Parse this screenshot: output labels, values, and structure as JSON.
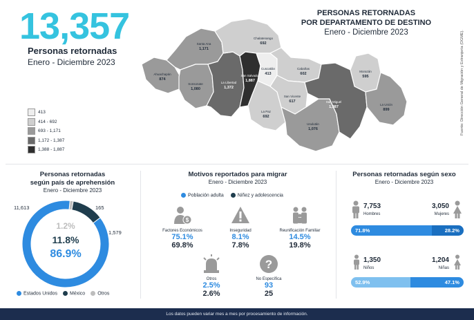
{
  "header": {
    "total": "13,357",
    "subtitle": "Personas retornadas",
    "period": "Enero - Diciembre 2023"
  },
  "map": {
    "title_line1": "PERSONAS RETORNADAS",
    "title_line2": "POR DEPARTAMENTO DE DESTINO",
    "period": "Enero - Diciembre 2023",
    "source": "Fuente: Dirección General de Migración y Extranjería (DGME).",
    "legend": [
      {
        "label": "413",
        "color": "#eeeeee"
      },
      {
        "label": "414 - 692",
        "color": "#cfcfcf"
      },
      {
        "label": "693 - 1,171",
        "color": "#9a9a9a"
      },
      {
        "label": "1,172 - 1,387",
        "color": "#6a6a6a"
      },
      {
        "label": "1,388 - 1,887",
        "color": "#2f2f2f"
      }
    ],
    "departments": [
      {
        "name": "Ahuachapán",
        "value": "874",
        "color": "#9a9a9a"
      },
      {
        "name": "Santa Ana",
        "value": "1,171",
        "color": "#9a9a9a"
      },
      {
        "name": "Sonsonate",
        "value": "1,080",
        "color": "#9a9a9a"
      },
      {
        "name": "La Libertad",
        "value": "1,372",
        "color": "#6a6a6a"
      },
      {
        "name": "Chalatenango",
        "value": "692",
        "color": "#cfcfcf"
      },
      {
        "name": "San Salvador",
        "value": "1,887",
        "color": "#2f2f2f"
      },
      {
        "name": "Cuscatlán",
        "value": "413",
        "color": "#eeeeee"
      },
      {
        "name": "Cabañas",
        "value": "602",
        "color": "#cfcfcf"
      },
      {
        "name": "La Paz",
        "value": "692",
        "color": "#cfcfcf"
      },
      {
        "name": "San Vicente",
        "value": "617",
        "color": "#cfcfcf"
      },
      {
        "name": "Usulután",
        "value": "1,076",
        "color": "#9a9a9a"
      },
      {
        "name": "Morazán",
        "value": "595",
        "color": "#cfcfcf"
      },
      {
        "name": "San Miguel",
        "value": "1,387",
        "color": "#6a6a6a"
      },
      {
        "name": "La Unión",
        "value": "899",
        "color": "#9a9a9a"
      }
    ]
  },
  "pais": {
    "title_line1": "Personas retornadas",
    "title_line2": "según país de aprehensión",
    "period": "Enero - Diciembre 2023",
    "ext_labels": {
      "estados_unidos": "11,613",
      "otros": "165",
      "mexico": "1,579"
    },
    "pct_otros": "1.2%",
    "pct_mexico": "11.8%",
    "pct_eeuu": "86.9%",
    "legend": [
      {
        "label": "Estados Unidos",
        "color": "#2e8be0"
      },
      {
        "label": "México",
        "color": "#1f3d4d"
      },
      {
        "label": "Otros",
        "color": "#bdbdbd"
      }
    ]
  },
  "motivos": {
    "title": "Motivos reportados para migrar",
    "period": "Enero - Diciembre 2023",
    "legend": [
      {
        "label": "Población adulta",
        "color": "#2e8be0"
      },
      {
        "label": "Niñez y adolescencia",
        "color": "#1f3d4d"
      }
    ],
    "items": [
      {
        "label": "Factores Económicos",
        "adult": "75.1%",
        "nna": "69.8%",
        "icon": "person-money-icon"
      },
      {
        "label": "Inseguridad",
        "adult": "8.1%",
        "nna": "7.8%",
        "icon": "warning-icon"
      },
      {
        "label": "Reunificación Familiar",
        "adult": "14.5%",
        "nna": "19.8%",
        "icon": "family-icon"
      },
      {
        "label": "Otros",
        "adult": "2.5%",
        "nna": "2.6%",
        "icon": "siren-icon"
      },
      {
        "label": "No Específica",
        "adult": "93",
        "nna": "25",
        "icon": "question-icon"
      }
    ]
  },
  "sexo": {
    "title": "Personas retornadas según sexo",
    "period": "Enero - Diciembre 2023",
    "hombres": {
      "value": "7,753",
      "label": "Hombres"
    },
    "mujeres": {
      "value": "3,050",
      "label": "Mujeres"
    },
    "bar1": {
      "left": "71.8%",
      "right": "28.2%"
    },
    "ninos": {
      "value": "1,350",
      "label": "Niños"
    },
    "ninas": {
      "value": "1,204",
      "label": "Niñas"
    },
    "bar2": {
      "left": "52.9%",
      "right": "47.1%"
    },
    "colors": {
      "dark": "#2e8be0",
      "light": "#7fc0ef",
      "mid": "#3d8fd6"
    }
  },
  "footer": "Los datos pueden variar mes a mes por procesamiento de información.",
  "chart_data": [
    {
      "type": "pie",
      "title": "Personas retornadas según país de aprehensión",
      "categories": [
        "Estados Unidos",
        "México",
        "Otros"
      ],
      "values": [
        11613,
        1579,
        165
      ],
      "percent": [
        86.9,
        11.8,
        1.2
      ]
    },
    {
      "type": "bar",
      "title": "Motivos reportados para migrar",
      "categories": [
        "Factores Económicos",
        "Inseguridad",
        "Reunificación Familiar",
        "Otros",
        "No Específica"
      ],
      "series": [
        {
          "name": "Población adulta",
          "values": [
            75.1,
            8.1,
            14.5,
            2.5,
            93
          ]
        },
        {
          "name": "Niñez y adolescencia",
          "values": [
            69.8,
            7.8,
            19.8,
            2.6,
            25
          ]
        }
      ]
    },
    {
      "type": "bar",
      "title": "Personas retornadas según sexo",
      "categories": [
        "Hombres",
        "Mujeres",
        "Niños",
        "Niñas"
      ],
      "values": [
        7753,
        3050,
        1350,
        1204
      ]
    }
  ]
}
